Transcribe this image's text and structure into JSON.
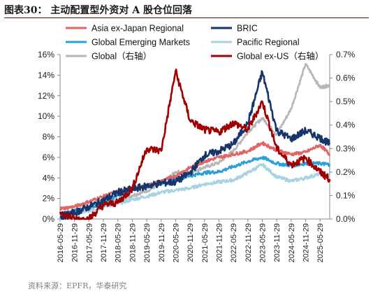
{
  "figure_title": "图表30：  主动配置型外资对 A 股仓位回落",
  "source": "资料来源：EPFR，华泰研究",
  "chart_data": {
    "type": "line",
    "title": "",
    "y_left": {
      "lim": [
        0,
        16
      ],
      "ticks": [
        "0%",
        "2%",
        "4%",
        "6%",
        "8%",
        "10%",
        "12%",
        "14%",
        "16%"
      ]
    },
    "y_right": {
      "lim": [
        0,
        0.7
      ],
      "ticks": [
        "0.0%",
        "0.1%",
        "0.2%",
        "0.3%",
        "0.4%",
        "0.5%",
        "0.6%",
        "0.7%"
      ]
    },
    "x_range": [
      "2016-05",
      "2025-09"
    ],
    "x_ticks": [
      "2016-05-29",
      "2016-11-29",
      "2017-05-29",
      "2017-11-29",
      "2018-05-29",
      "2018-11-29",
      "2019-05-29",
      "2019-11-29",
      "2020-05-29",
      "2020-11-29",
      "2021-05-29",
      "2021-11-29",
      "2022-05-29",
      "2022-11-29",
      "2023-05-29",
      "2023-11-29",
      "2024-05-29",
      "2024-11-29",
      "2025-05-29"
    ],
    "grid": false,
    "legend": "top, two columns",
    "series": [
      {
        "name": "Asia ex-Japan Regional",
        "axis": "left",
        "color": "#e06666",
        "points": [
          [
            "2016-05",
            1.0
          ],
          [
            "2016-11",
            1.2
          ],
          [
            "2017-05",
            1.7
          ],
          [
            "2017-11",
            2.2
          ],
          [
            "2018-05",
            2.7
          ],
          [
            "2018-11",
            2.9
          ],
          [
            "2019-05",
            3.2
          ],
          [
            "2019-11",
            3.7
          ],
          [
            "2020-05",
            4.2
          ],
          [
            "2020-11",
            5.0
          ],
          [
            "2021-05",
            5.6
          ],
          [
            "2021-11",
            6.0
          ],
          [
            "2022-05",
            6.3
          ],
          [
            "2022-11",
            6.6
          ],
          [
            "2023-05",
            7.4
          ],
          [
            "2023-11",
            6.7
          ],
          [
            "2024-05",
            6.3
          ],
          [
            "2024-11",
            6.5
          ],
          [
            "2025-05",
            7.2
          ],
          [
            "2025-09",
            6.3
          ]
        ]
      },
      {
        "name": "BRIC",
        "axis": "left",
        "color": "#17356b",
        "points": [
          [
            "2016-05",
            0.2
          ],
          [
            "2016-11",
            0.6
          ],
          [
            "2017-05",
            1.2
          ],
          [
            "2017-11",
            1.8
          ],
          [
            "2018-05",
            2.6
          ],
          [
            "2018-11",
            2.9
          ],
          [
            "2019-05",
            3.2
          ],
          [
            "2019-11",
            3.5
          ],
          [
            "2020-05",
            3.6
          ],
          [
            "2020-11",
            4.5
          ],
          [
            "2021-05",
            6.2
          ],
          [
            "2021-11",
            6.6
          ],
          [
            "2022-05",
            7.3
          ],
          [
            "2022-11",
            9.3
          ],
          [
            "2023-05",
            14.3
          ],
          [
            "2023-11",
            8.6
          ],
          [
            "2024-05",
            7.8
          ],
          [
            "2024-11",
            8.6
          ],
          [
            "2025-05",
            7.9
          ],
          [
            "2025-09",
            7.3
          ]
        ]
      },
      {
        "name": "Global Emerging Markets",
        "axis": "left",
        "color": "#2a9fd8",
        "points": [
          [
            "2016-05",
            0.5
          ],
          [
            "2016-11",
            0.8
          ],
          [
            "2017-05",
            1.1
          ],
          [
            "2017-11",
            1.6
          ],
          [
            "2018-05",
            2.3
          ],
          [
            "2018-11",
            2.8
          ],
          [
            "2019-05",
            3.3
          ],
          [
            "2019-11",
            3.5
          ],
          [
            "2020-05",
            3.9
          ],
          [
            "2020-11",
            4.2
          ],
          [
            "2021-05",
            4.5
          ],
          [
            "2021-11",
            4.6
          ],
          [
            "2022-05",
            5.1
          ],
          [
            "2022-11",
            5.6
          ],
          [
            "2023-05",
            6.0
          ],
          [
            "2023-11",
            5.4
          ],
          [
            "2024-05",
            5.2
          ],
          [
            "2024-11",
            5.4
          ],
          [
            "2025-05",
            5.4
          ],
          [
            "2025-09",
            5.3
          ]
        ]
      },
      {
        "name": "Pacific Regional",
        "axis": "left",
        "color": "#a8d3e3",
        "points": [
          [
            "2016-05",
            0.1
          ],
          [
            "2016-11",
            0.5
          ],
          [
            "2017-05",
            0.8
          ],
          [
            "2017-11",
            1.2
          ],
          [
            "2018-05",
            1.5
          ],
          [
            "2018-11",
            1.9
          ],
          [
            "2019-05",
            2.2
          ],
          [
            "2019-11",
            2.6
          ],
          [
            "2020-05",
            2.8
          ],
          [
            "2020-11",
            3.0
          ],
          [
            "2021-05",
            3.4
          ],
          [
            "2021-11",
            3.6
          ],
          [
            "2022-05",
            3.8
          ],
          [
            "2022-11",
            4.5
          ],
          [
            "2023-05",
            5.3
          ],
          [
            "2023-11",
            4.1
          ],
          [
            "2024-05",
            3.7
          ],
          [
            "2024-11",
            4.0
          ],
          [
            "2025-05",
            4.4
          ],
          [
            "2025-09",
            4.2
          ]
        ]
      },
      {
        "name": "Global（右轴）",
        "axis": "right",
        "color": "#b7b7b7",
        "points": [
          [
            "2016-05",
            0.01
          ],
          [
            "2016-11",
            0.02
          ],
          [
            "2017-05",
            0.04
          ],
          [
            "2017-11",
            0.07
          ],
          [
            "2018-05",
            0.08
          ],
          [
            "2018-11",
            0.1
          ],
          [
            "2019-05",
            0.12
          ],
          [
            "2019-11",
            0.15
          ],
          [
            "2020-05",
            0.2
          ],
          [
            "2020-11",
            0.2
          ],
          [
            "2021-05",
            0.22
          ],
          [
            "2021-11",
            0.24
          ],
          [
            "2022-05",
            0.29
          ],
          [
            "2022-11",
            0.37
          ],
          [
            "2023-05",
            0.43
          ],
          [
            "2023-11",
            0.36
          ],
          [
            "2024-05",
            0.47
          ],
          [
            "2024-11",
            0.66
          ],
          [
            "2025-05",
            0.56
          ],
          [
            "2025-09",
            0.57
          ]
        ]
      },
      {
        "name": "Global ex-US（右轴）",
        "axis": "right",
        "color": "#a00000",
        "points": [
          [
            "2016-05",
            0.03
          ],
          [
            "2016-11",
            0.0
          ],
          [
            "2017-05",
            0.0
          ],
          [
            "2017-11",
            0.06
          ],
          [
            "2018-05",
            0.07
          ],
          [
            "2018-11",
            0.13
          ],
          [
            "2019-05",
            0.3
          ],
          [
            "2019-11",
            0.29
          ],
          [
            "2020-05",
            0.63
          ],
          [
            "2020-11",
            0.42
          ],
          [
            "2021-05",
            0.38
          ],
          [
            "2021-11",
            0.37
          ],
          [
            "2022-05",
            0.41
          ],
          [
            "2022-11",
            0.38
          ],
          [
            "2023-05",
            0.5
          ],
          [
            "2023-11",
            0.3
          ],
          [
            "2024-05",
            0.23
          ],
          [
            "2024-11",
            0.26
          ],
          [
            "2025-05",
            0.2
          ],
          [
            "2025-09",
            0.17
          ]
        ]
      }
    ]
  }
}
